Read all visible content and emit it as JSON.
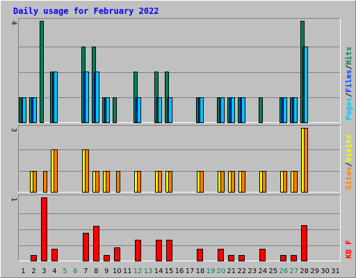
{
  "chart_data": {
    "type": "bar",
    "title": "Daily usage for February 2022",
    "categories": [
      "1",
      "2",
      "3",
      "4",
      "5",
      "6",
      "7",
      "8",
      "9",
      "10",
      "11",
      "12",
      "13",
      "14",
      "15",
      "16",
      "17",
      "18",
      "19",
      "20",
      "21",
      "22",
      "23",
      "24",
      "25",
      "26",
      "27",
      "28",
      "29",
      "30",
      "31"
    ],
    "weekend_days": [
      5,
      6,
      12,
      13,
      19,
      20,
      26,
      27
    ],
    "panels": [
      {
        "id": "hits-files-pages",
        "ymax_label": "4",
        "ymax": 4,
        "series": [
          {
            "name": "Hits",
            "color": "#00805c",
            "values": [
              1,
              1,
              4,
              2,
              0,
              0,
              3,
              3,
              1,
              1,
              0,
              2,
              0,
              2,
              2,
              0,
              0,
              1,
              0,
              1,
              1,
              1,
              0,
              1,
              0,
              1,
              1,
              4,
              0,
              0,
              0
            ]
          },
          {
            "name": "Files",
            "color": "#0040ff",
            "values": [
              1,
              1,
              0,
              2,
              0,
              0,
              2,
              2,
              1,
              0,
              0,
              1,
              0,
              1,
              1,
              0,
              0,
              1,
              0,
              1,
              1,
              1,
              0,
              0,
              0,
              1,
              1,
              3,
              0,
              0,
              0
            ]
          },
          {
            "name": "Pages",
            "color": "#00c8ff",
            "values": [
              1,
              1,
              0,
              2,
              0,
              0,
              2,
              2,
              1,
              0,
              0,
              1,
              0,
              1,
              1,
              0,
              0,
              1,
              0,
              1,
              1,
              1,
              0,
              0,
              0,
              1,
              1,
              3,
              0,
              0,
              0
            ]
          }
        ],
        "side_labels": [
          "Pages",
          "/",
          "Files",
          "/",
          "Hits"
        ]
      },
      {
        "id": "visits-sites",
        "ymax_label": "3",
        "ymax": 3,
        "series": [
          {
            "name": "Visits",
            "color": "#ffff00",
            "values": [
              0,
              1,
              0,
              2,
              0,
              0,
              2,
              1,
              1,
              0,
              0,
              1,
              0,
              1,
              1,
              0,
              0,
              1,
              0,
              1,
              1,
              1,
              0,
              1,
              0,
              1,
              1,
              3,
              0,
              0,
              0
            ]
          },
          {
            "name": "Sites",
            "color": "#ff8000",
            "values": [
              0,
              1,
              1,
              2,
              0,
              0,
              2,
              1,
              1,
              1,
              0,
              1,
              0,
              1,
              1,
              0,
              0,
              1,
              0,
              1,
              1,
              1,
              0,
              1,
              0,
              1,
              1,
              3,
              0,
              0,
              0
            ]
          }
        ],
        "side_labels": [
          "Sites",
          "/",
          "Visits"
        ]
      },
      {
        "id": "kbytes",
        "ymax_label": "1",
        "ymax": 1,
        "series": [
          {
            "name": "KB F",
            "color": "#ff0000",
            "values": [
              0,
              0.1,
              1.0,
              0.2,
              0,
              0,
              0.45,
              0.55,
              0.1,
              0.22,
              0,
              0.34,
              0,
              0.34,
              0.34,
              0,
              0,
              0.2,
              0,
              0.2,
              0.1,
              0.1,
              0,
              0.2,
              0,
              0.1,
              0.1,
              0.57,
              0,
              0,
              0
            ]
          }
        ],
        "side_labels": [
          "KB F"
        ]
      }
    ],
    "colors": {
      "frame": "#c0c0c0",
      "plot": "#c0c0c0",
      "grid": "#808080",
      "title": "#0000ff",
      "weekday_label": "#000000",
      "weekend_label": "#00805c"
    }
  }
}
